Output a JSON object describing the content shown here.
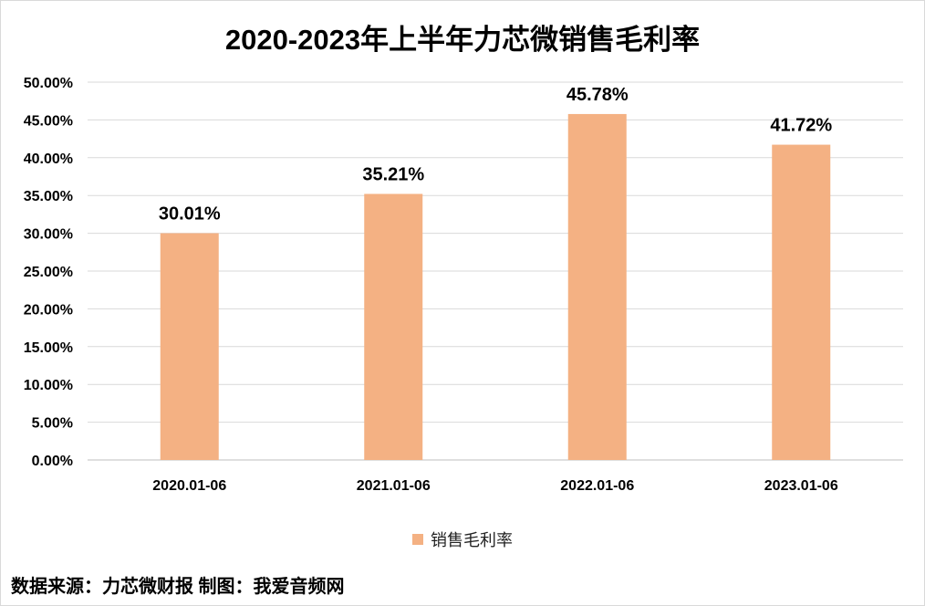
{
  "chart_data": {
    "type": "bar",
    "title": "2020-2023年上半年力芯微销售毛利率",
    "categories": [
      "2020.01-06",
      "2021.01-06",
      "2022.01-06",
      "2023.01-06"
    ],
    "series": [
      {
        "name": "销售毛利率",
        "values": [
          30.01,
          35.21,
          45.78,
          41.72
        ],
        "labels": [
          "30.01%",
          "35.21%",
          "45.78%",
          "41.72%"
        ],
        "color": "#f4b183"
      }
    ],
    "ylim": [
      0,
      50
    ],
    "ytick_labels": [
      "0.00%",
      "5.00%",
      "10.00%",
      "15.00%",
      "20.00%",
      "25.00%",
      "30.00%",
      "35.00%",
      "40.00%",
      "45.00%",
      "50.00%"
    ],
    "grid": true,
    "legend_position": "bottom"
  },
  "footer": {
    "source": "数据来源：力芯微财报  制图：我爱音频网"
  }
}
